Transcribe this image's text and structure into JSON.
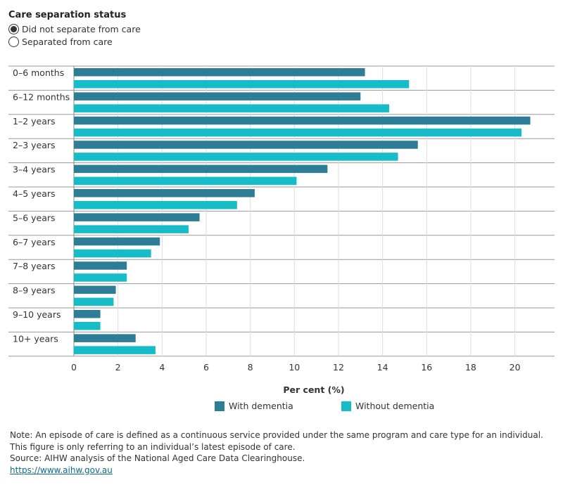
{
  "filter": {
    "title": "Care separation status",
    "options": [
      {
        "label": "Did not separate from care",
        "selected": true
      },
      {
        "label": "Separated from care",
        "selected": false
      }
    ]
  },
  "chart_data": {
    "type": "bar",
    "orientation": "horizontal",
    "categories": [
      "0–6 months",
      "6–12 months",
      "1–2 years",
      "2–3 years",
      "3–4 years",
      "4–5 years",
      "5–6 years",
      "6–7 years",
      "7–8 years",
      "8–9 years",
      "9–10 years",
      "10+ years"
    ],
    "series": [
      {
        "name": "With dementia",
        "color": "#2e7d96",
        "values": [
          13.2,
          13.0,
          20.7,
          15.6,
          11.5,
          8.2,
          5.7,
          3.9,
          2.4,
          1.9,
          1.2,
          2.8
        ]
      },
      {
        "name": "Without dementia",
        "color": "#17bcc9",
        "values": [
          15.2,
          14.3,
          20.3,
          14.7,
          10.1,
          7.4,
          5.2,
          3.5,
          2.4,
          1.8,
          1.2,
          3.7
        ]
      }
    ],
    "xlabel": "Per cent (%)",
    "xlim": [
      0,
      21
    ],
    "xticks": [
      0,
      2,
      4,
      6,
      8,
      10,
      12,
      14,
      16,
      18,
      20
    ],
    "legend_position": "bottom"
  },
  "notes": {
    "line1": "Note: An episode of care is defined as a continuous service provided under the same program and care type for an individual. This figure is only referring to an individual’s latest episode of care.",
    "line2": "Source: AIHW analysis of the National Aged Care Data Clearinghouse.",
    "link": "https://www.aihw.gov.au"
  }
}
